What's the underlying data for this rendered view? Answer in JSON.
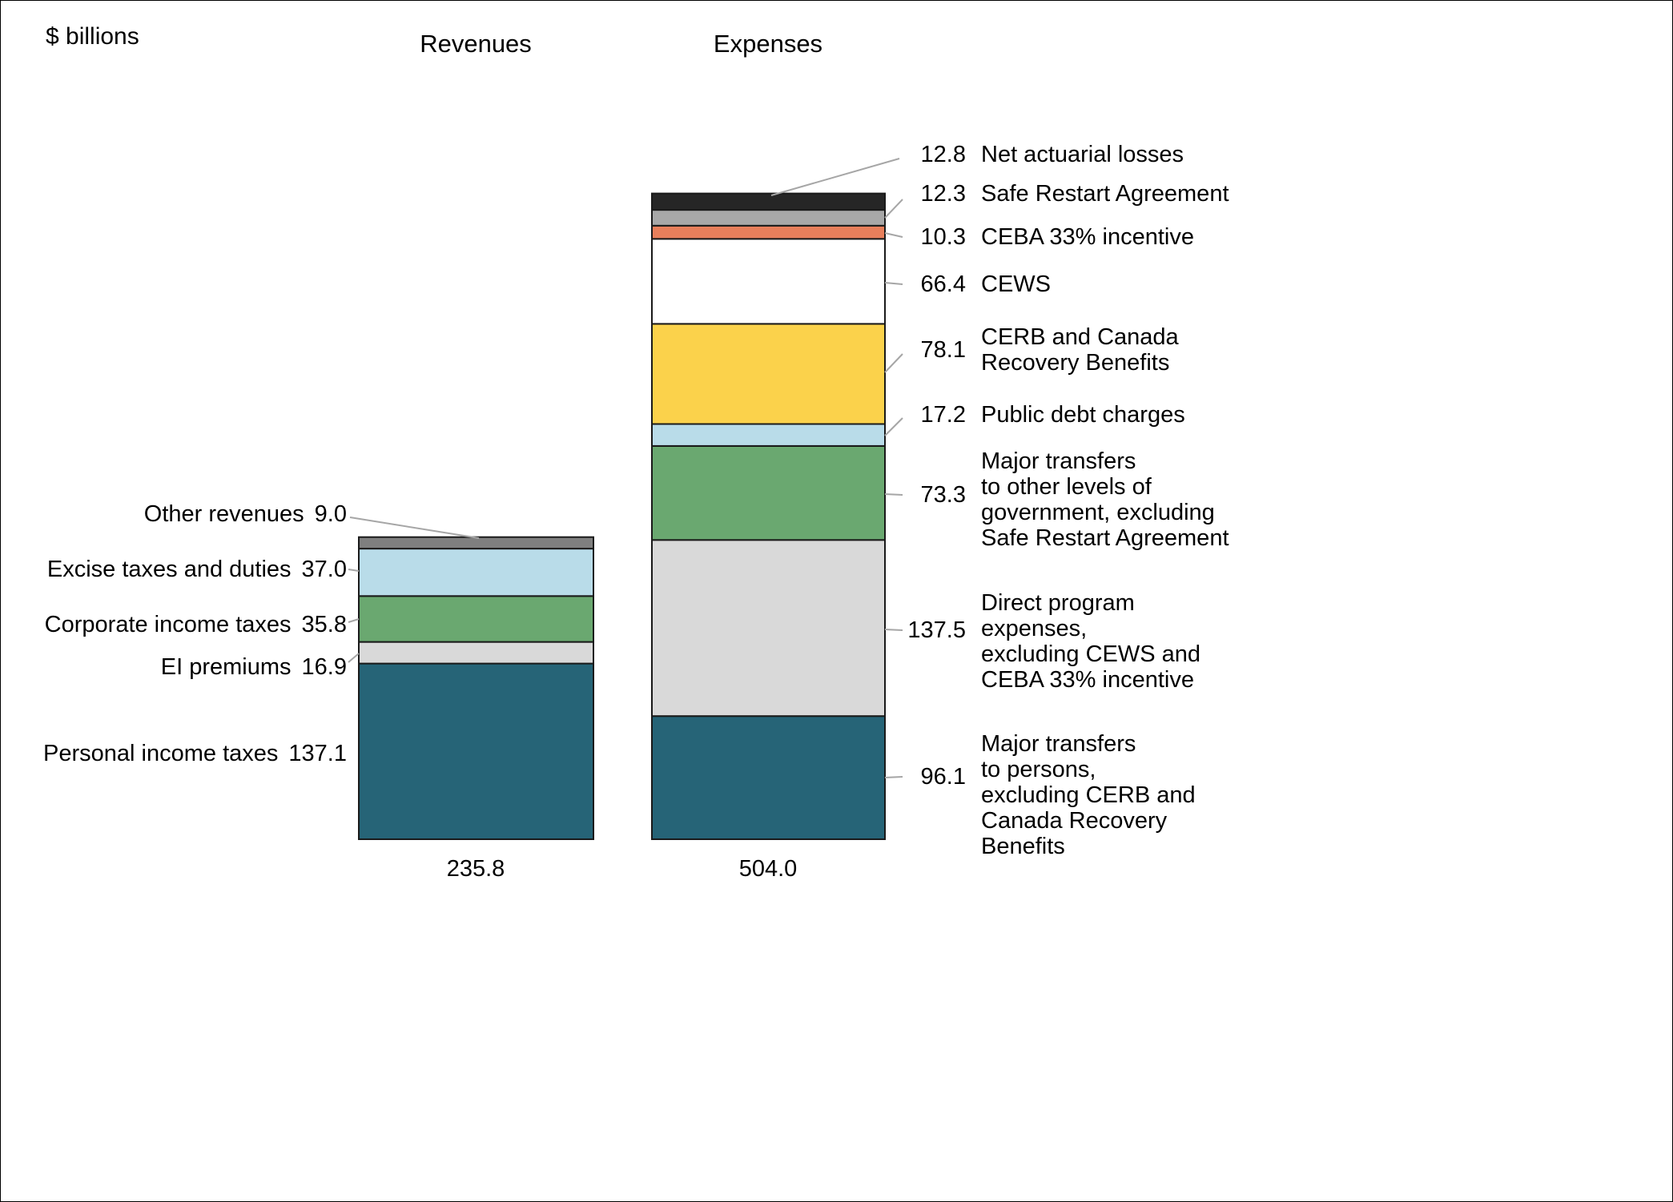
{
  "chart_data": {
    "type": "bar",
    "subtype": "stacked-column",
    "unit": "$ billions",
    "grid": false,
    "leader_line_color": "#a6a6a6",
    "segment_border_color": "#1a1a1a",
    "columns": [
      {
        "name": "Revenues",
        "total": 235.8,
        "display_total": "235.8",
        "segments": [
          {
            "label": "Personal income taxes",
            "value": 137.1,
            "display_value": "137.1",
            "color": "#266477"
          },
          {
            "label": "EI premiums",
            "value": 16.9,
            "display_value": "16.9",
            "color": "#d9d9d9"
          },
          {
            "label": "Corporate income taxes",
            "value": 35.8,
            "display_value": "35.8",
            "color": "#6aa870"
          },
          {
            "label": "Excise taxes and duties",
            "value": 37.0,
            "display_value": "37.0",
            "color": "#b9dce9"
          },
          {
            "label": "Other revenues",
            "value": 9.0,
            "display_value": "9.0",
            "color": "#7f7f7f"
          }
        ]
      },
      {
        "name": "Expenses",
        "total": 504.0,
        "display_total": "504.0",
        "segments": [
          {
            "label": "Major transfers to persons, excluding CERB and Canada Recovery Benefits",
            "display_label": "Major transfers\nto persons,\nexcluding CERB and\nCanada Recovery\nBenefits",
            "value": 96.1,
            "display_value": "96.1",
            "color": "#266477"
          },
          {
            "label": "Direct program expenses, excluding CEWS and CEBA 33% incentive",
            "display_label": "Direct program\nexpenses,\nexcluding CEWS and\nCEBA 33% incentive",
            "value": 137.5,
            "display_value": "137.5",
            "color": "#d9d9d9"
          },
          {
            "label": "Major transfers to other levels of government, excluding Safe Restart Agreement",
            "display_label": "Major transfers\nto other levels of\ngovernment, excluding\nSafe Restart Agreement",
            "value": 73.3,
            "display_value": "73.3",
            "color": "#6aa870"
          },
          {
            "label": "Public debt charges",
            "value": 17.2,
            "display_value": "17.2",
            "color": "#b9dce9"
          },
          {
            "label": "CERB and Canada Recovery Benefits",
            "display_label": "CERB and Canada\nRecovery Benefits",
            "value": 78.1,
            "display_value": "78.1",
            "color": "#fbd24b"
          },
          {
            "label": "CEWS",
            "value": 66.4,
            "display_value": "66.4",
            "color": "#ffffff"
          },
          {
            "label": "CEBA 33% incentive",
            "value": 10.3,
            "display_value": "10.3",
            "color": "#e87f5b"
          },
          {
            "label": "Safe Restart Agreement",
            "value": 12.3,
            "display_value": "12.3",
            "color": "#a8a8a8"
          },
          {
            "label": "Net actuarial losses",
            "value": 12.8,
            "display_value": "12.8",
            "color": "#262626"
          }
        ]
      }
    ]
  }
}
